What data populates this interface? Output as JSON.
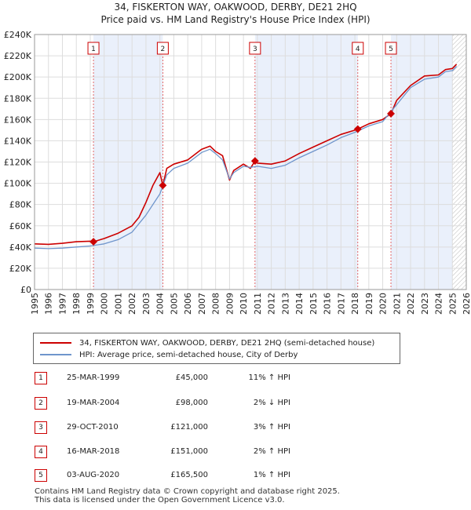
{
  "header": {
    "title_line1": "34, FISKERTON WAY, OAKWOOD, DERBY, DE21 2HQ",
    "title_line2": "Price paid vs. HM Land Registry's House Price Index (HPI)"
  },
  "chart_data": {
    "type": "line",
    "title": "34, FISKERTON WAY, OAKWOOD, DERBY, DE21 2HQ — Price paid vs. HM Land Registry's House Price Index (HPI)",
    "xlabel": "",
    "ylabel": "",
    "xlim": [
      1995,
      2026
    ],
    "ylim": [
      0,
      240000
    ],
    "y_ticks": [
      0,
      20000,
      40000,
      60000,
      80000,
      100000,
      120000,
      140000,
      160000,
      180000,
      200000,
      220000,
      240000
    ],
    "y_tick_labels": [
      "£0",
      "£20K",
      "£40K",
      "£60K",
      "£80K",
      "£100K",
      "£120K",
      "£140K",
      "£160K",
      "£180K",
      "£200K",
      "£220K",
      "£240K"
    ],
    "x_ticks": [
      1995,
      1996,
      1997,
      1998,
      1999,
      2000,
      2001,
      2002,
      2003,
      2004,
      2005,
      2006,
      2007,
      2008,
      2009,
      2010,
      2011,
      2012,
      2013,
      2014,
      2015,
      2016,
      2017,
      2018,
      2019,
      2020,
      2021,
      2022,
      2023,
      2024,
      2025,
      2026
    ],
    "x_tick_labels": [
      "1995",
      "1996",
      "1997",
      "1998",
      "1999",
      "2000",
      "2001",
      "2002",
      "2003",
      "2004",
      "2005",
      "2006",
      "2007",
      "2008",
      "2009",
      "2010",
      "2011",
      "2012",
      "2013",
      "2014",
      "2015",
      "2016",
      "2017",
      "2018",
      "2019",
      "2020",
      "2021",
      "2022",
      "2023",
      "2024",
      "2025",
      "2026"
    ],
    "grid": true,
    "shaded_periods": [
      [
        1999.23,
        2004.21
      ],
      [
        2010.83,
        2018.21
      ],
      [
        2020.59,
        2025.0
      ]
    ],
    "forecast_start": 2025.0,
    "series": [
      {
        "name": "34, FISKERTON WAY, OAKWOOD, DERBY, DE21 2HQ (semi-detached house)",
        "color": "#cc0000",
        "x": [
          1995.0,
          1996.0,
          1997.0,
          1998.0,
          1999.0,
          1999.23,
          2000.0,
          2001.0,
          2002.0,
          2002.5,
          2003.0,
          2003.5,
          2004.0,
          2004.21,
          2004.5,
          2005.0,
          2006.0,
          2007.0,
          2007.6,
          2008.0,
          2008.5,
          2009.0,
          2009.3,
          2010.0,
          2010.5,
          2010.83,
          2011.0,
          2012.0,
          2013.0,
          2014.0,
          2015.0,
          2016.0,
          2017.0,
          2018.0,
          2018.21,
          2019.0,
          2020.0,
          2020.59,
          2021.0,
          2022.0,
          2023.0,
          2024.0,
          2024.5,
          2025.0,
          2025.3
        ],
        "values": [
          43000,
          42500,
          43500,
          45000,
          45500,
          45000,
          48000,
          53000,
          60000,
          68000,
          82000,
          98000,
          110000,
          98000,
          114000,
          118000,
          122000,
          132000,
          135000,
          130000,
          126000,
          103000,
          112000,
          118000,
          114000,
          121000,
          119000,
          118000,
          121000,
          128000,
          134000,
          140000,
          146000,
          150000,
          151000,
          156000,
          160000,
          165500,
          178000,
          192000,
          201000,
          202000,
          207000,
          208000,
          212000
        ]
      },
      {
        "name": "HPI: Average price, semi-detached house, City of Derby",
        "color": "#6f95cc",
        "x": [
          1995.0,
          1996.0,
          1997.0,
          1998.0,
          1999.0,
          2000.0,
          2001.0,
          2002.0,
          2003.0,
          2004.0,
          2004.5,
          2005.0,
          2006.0,
          2007.0,
          2007.6,
          2008.0,
          2008.5,
          2009.0,
          2009.3,
          2010.0,
          2010.5,
          2011.0,
          2012.0,
          2013.0,
          2014.0,
          2015.0,
          2016.0,
          2017.0,
          2018.0,
          2019.0,
          2020.0,
          2021.0,
          2022.0,
          2023.0,
          2024.0,
          2024.5,
          2025.0,
          2025.3
        ],
        "values": [
          39000,
          38500,
          39000,
          40000,
          41000,
          43000,
          47000,
          54000,
          70000,
          90000,
          108000,
          114000,
          119000,
          129000,
          132000,
          128000,
          122000,
          104000,
          110000,
          116000,
          115000,
          116000,
          114000,
          117000,
          124000,
          130000,
          136000,
          143000,
          148000,
          154000,
          158000,
          174000,
          190000,
          198000,
          200000,
          205000,
          206000,
          210000
        ]
      }
    ],
    "sale_markers": [
      {
        "label": "1",
        "x": 1999.23,
        "value": 45000
      },
      {
        "label": "2",
        "x": 2004.21,
        "value": 98000
      },
      {
        "label": "3",
        "x": 2010.83,
        "value": 121000
      },
      {
        "label": "4",
        "x": 2018.21,
        "value": 151000
      },
      {
        "label": "5",
        "x": 2020.59,
        "value": 165500
      }
    ]
  },
  "legend": {
    "property_label": "34, FISKERTON WAY, OAKWOOD, DERBY, DE21 2HQ (semi-detached house)",
    "hpi_label": "HPI: Average price, semi-detached house, City of Derby"
  },
  "sales": [
    {
      "num": "1",
      "date": "25-MAR-1999",
      "price": "£45,000",
      "hpi": "11% ↑ HPI"
    },
    {
      "num": "2",
      "date": "19-MAR-2004",
      "price": "£98,000",
      "hpi": "2% ↓ HPI"
    },
    {
      "num": "3",
      "date": "29-OCT-2010",
      "price": "£121,000",
      "hpi": "3% ↑ HPI"
    },
    {
      "num": "4",
      "date": "16-MAR-2018",
      "price": "£151,000",
      "hpi": "2% ↑ HPI"
    },
    {
      "num": "5",
      "date": "03-AUG-2020",
      "price": "£165,500",
      "hpi": "1% ↑ HPI"
    }
  ],
  "footer": {
    "line1": "Contains HM Land Registry data © Crown copyright and database right 2025.",
    "line2": "This data is licensed under the Open Government Licence v3.0."
  }
}
